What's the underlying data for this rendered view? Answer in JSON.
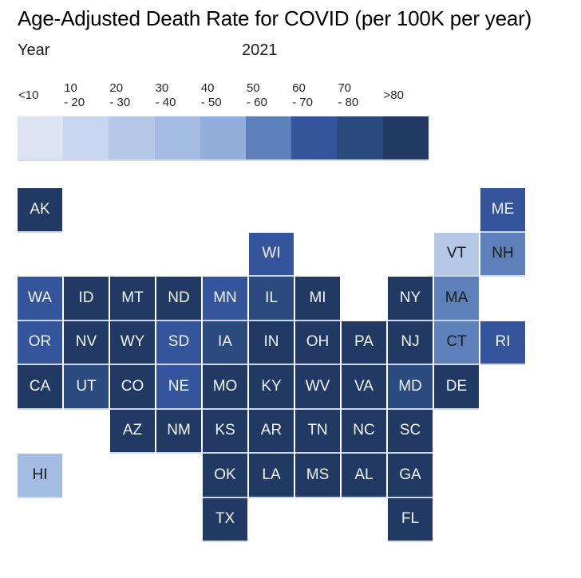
{
  "title": "Age-Adjusted Death Rate for COVID (per 100K per year)",
  "controls": {
    "year_label": "Year",
    "year_value": "2021"
  },
  "colors": {
    "background": "#ffffff",
    "title_text": "#000000",
    "legend_label_text": "#262626",
    "dark_text": "#1a1a1a",
    "light_text": "#f2f4fb",
    "tile_edge": "#ccd6ee"
  },
  "chart_data": {
    "type": "heatmap",
    "subtype": "us-state-tile-grid-map",
    "title": "Age-Adjusted Death Rate for COVID (per 100K per year)",
    "parameter": {
      "name": "Year",
      "value": "2021"
    },
    "legend": {
      "position": "top",
      "bins": [
        {
          "id": "lt10",
          "label": [
            "<10"
          ],
          "range": "<10",
          "color": "#dce3f3",
          "text": "dark"
        },
        {
          "id": "10-20",
          "label": [
            "10",
            "- 20"
          ],
          "range": "10-20",
          "color": "#c9d5ee",
          "text": "dark"
        },
        {
          "id": "20-30",
          "label": [
            "20",
            "- 30"
          ],
          "range": "20-30",
          "color": "#b5c8e8",
          "text": "dark"
        },
        {
          "id": "30-40",
          "label": [
            "30",
            "- 40"
          ],
          "range": "30-40",
          "color": "#a4bbe2",
          "text": "dark"
        },
        {
          "id": "40-50",
          "label": [
            "40",
            "- 50"
          ],
          "range": "40-50",
          "color": "#92afdc",
          "text": "dark"
        },
        {
          "id": "50-60",
          "label": [
            "50",
            "- 60"
          ],
          "range": "50-60",
          "color": "#5e80ba",
          "text": "dark"
        },
        {
          "id": "60-70",
          "label": [
            "60",
            "- 70"
          ],
          "range": "60-70",
          "color": "#34549c",
          "text": "light"
        },
        {
          "id": "70-80",
          "label": [
            "70",
            "- 80"
          ],
          "range": "70-80",
          "color": "#2b4a7e",
          "text": "light"
        },
        {
          "id": "gt80",
          "label": [
            ">80"
          ],
          "range": ">80",
          "color": "#223a63",
          "text": "light"
        }
      ]
    },
    "states": [
      {
        "abbr": "AK",
        "row": 1,
        "col": 1,
        "bin": "gt80"
      },
      {
        "abbr": "ME",
        "row": 1,
        "col": 11,
        "bin": "60-70"
      },
      {
        "abbr": "WI",
        "row": 2,
        "col": 6,
        "bin": "60-70"
      },
      {
        "abbr": "VT",
        "row": 2,
        "col": 10,
        "bin": "20-30"
      },
      {
        "abbr": "NH",
        "row": 2,
        "col": 11,
        "bin": "50-60"
      },
      {
        "abbr": "WA",
        "row": 3,
        "col": 1,
        "bin": "60-70"
      },
      {
        "abbr": "ID",
        "row": 3,
        "col": 2,
        "bin": "gt80"
      },
      {
        "abbr": "MT",
        "row": 3,
        "col": 3,
        "bin": "gt80"
      },
      {
        "abbr": "ND",
        "row": 3,
        "col": 4,
        "bin": "gt80"
      },
      {
        "abbr": "MN",
        "row": 3,
        "col": 5,
        "bin": "60-70"
      },
      {
        "abbr": "IL",
        "row": 3,
        "col": 6,
        "bin": "70-80"
      },
      {
        "abbr": "MI",
        "row": 3,
        "col": 7,
        "bin": "gt80"
      },
      {
        "abbr": "NY",
        "row": 3,
        "col": 9,
        "bin": "gt80"
      },
      {
        "abbr": "MA",
        "row": 3,
        "col": 10,
        "bin": "50-60"
      },
      {
        "abbr": "OR",
        "row": 4,
        "col": 1,
        "bin": "60-70"
      },
      {
        "abbr": "NV",
        "row": 4,
        "col": 2,
        "bin": "gt80"
      },
      {
        "abbr": "WY",
        "row": 4,
        "col": 3,
        "bin": "gt80"
      },
      {
        "abbr": "SD",
        "row": 4,
        "col": 4,
        "bin": "60-70"
      },
      {
        "abbr": "IA",
        "row": 4,
        "col": 5,
        "bin": "70-80"
      },
      {
        "abbr": "IN",
        "row": 4,
        "col": 6,
        "bin": "gt80"
      },
      {
        "abbr": "OH",
        "row": 4,
        "col": 7,
        "bin": "gt80"
      },
      {
        "abbr": "PA",
        "row": 4,
        "col": 8,
        "bin": "gt80"
      },
      {
        "abbr": "NJ",
        "row": 4,
        "col": 9,
        "bin": "gt80"
      },
      {
        "abbr": "CT",
        "row": 4,
        "col": 10,
        "bin": "50-60"
      },
      {
        "abbr": "RI",
        "row": 4,
        "col": 11,
        "bin": "60-70"
      },
      {
        "abbr": "CA",
        "row": 5,
        "col": 1,
        "bin": "gt80"
      },
      {
        "abbr": "UT",
        "row": 5,
        "col": 2,
        "bin": "70-80"
      },
      {
        "abbr": "CO",
        "row": 5,
        "col": 3,
        "bin": "gt80"
      },
      {
        "abbr": "NE",
        "row": 5,
        "col": 4,
        "bin": "60-70"
      },
      {
        "abbr": "MO",
        "row": 5,
        "col": 5,
        "bin": "gt80"
      },
      {
        "abbr": "KY",
        "row": 5,
        "col": 6,
        "bin": "gt80"
      },
      {
        "abbr": "WV",
        "row": 5,
        "col": 7,
        "bin": "gt80"
      },
      {
        "abbr": "VA",
        "row": 5,
        "col": 8,
        "bin": "gt80"
      },
      {
        "abbr": "MD",
        "row": 5,
        "col": 9,
        "bin": "70-80"
      },
      {
        "abbr": "DE",
        "row": 5,
        "col": 10,
        "bin": "gt80"
      },
      {
        "abbr": "AZ",
        "row": 6,
        "col": 3,
        "bin": "gt80"
      },
      {
        "abbr": "NM",
        "row": 6,
        "col": 4,
        "bin": "gt80"
      },
      {
        "abbr": "KS",
        "row": 6,
        "col": 5,
        "bin": "gt80"
      },
      {
        "abbr": "AR",
        "row": 6,
        "col": 6,
        "bin": "gt80"
      },
      {
        "abbr": "TN",
        "row": 6,
        "col": 7,
        "bin": "gt80"
      },
      {
        "abbr": "NC",
        "row": 6,
        "col": 8,
        "bin": "gt80"
      },
      {
        "abbr": "SC",
        "row": 6,
        "col": 9,
        "bin": "gt80"
      },
      {
        "abbr": "HI",
        "row": 7,
        "col": 1,
        "bin": "30-40"
      },
      {
        "abbr": "OK",
        "row": 7,
        "col": 5,
        "bin": "gt80"
      },
      {
        "abbr": "LA",
        "row": 7,
        "col": 6,
        "bin": "gt80"
      },
      {
        "abbr": "MS",
        "row": 7,
        "col": 7,
        "bin": "gt80"
      },
      {
        "abbr": "AL",
        "row": 7,
        "col": 8,
        "bin": "gt80"
      },
      {
        "abbr": "GA",
        "row": 7,
        "col": 9,
        "bin": "gt80"
      },
      {
        "abbr": "TX",
        "row": 8,
        "col": 5,
        "bin": "gt80"
      },
      {
        "abbr": "FL",
        "row": 8,
        "col": 9,
        "bin": "gt80"
      }
    ]
  }
}
